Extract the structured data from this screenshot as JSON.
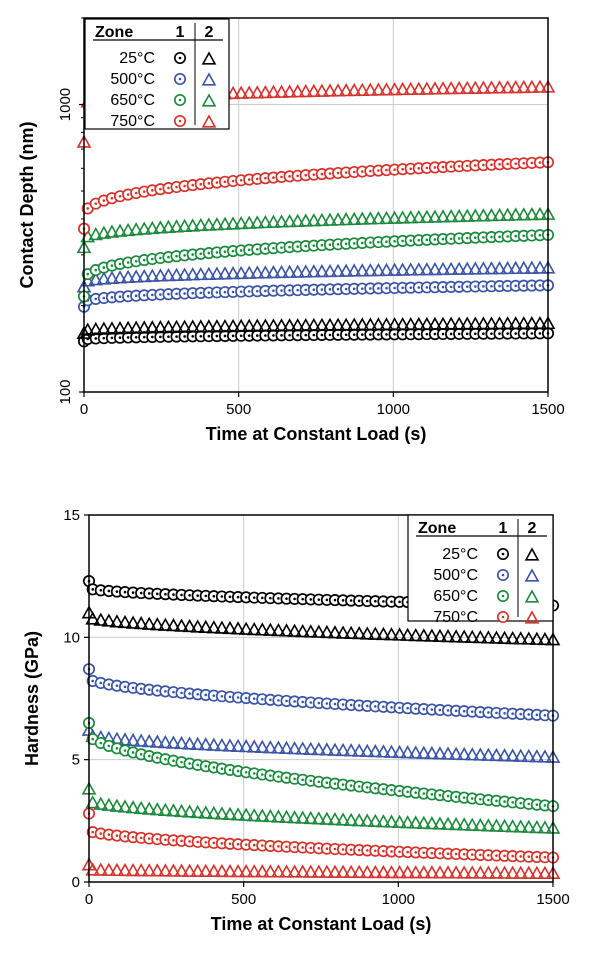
{
  "legend": {
    "header_label": "Zone",
    "zone1": "1",
    "zone2": "2",
    "temperatures": [
      "25°C",
      "500°C",
      "650°C",
      "750°C"
    ]
  },
  "colors": {
    "25°C": "#000000",
    "500°C": "#3a55a5",
    "650°C": "#1c8a3c",
    "750°C": "#d6322c",
    "grid": "#cccccc"
  },
  "chart_data": [
    {
      "type": "scatter",
      "xlabel": "Time at Constant Load (s)",
      "ylabel": "Contact Depth (nm)",
      "xlim": [
        0,
        1500
      ],
      "ylim": [
        100,
        2000
      ],
      "yscale": "log",
      "xticks": [
        0,
        500,
        1000,
        1500
      ],
      "yticks": [
        100,
        1000
      ],
      "xtick_labels": [
        "0",
        "500",
        "1000",
        "1500"
      ],
      "ytick_labels": [
        "100",
        "1000"
      ],
      "grid": true,
      "legend_position": "top-left",
      "series": [
        {
          "temperature": "25°C",
          "zone": "1",
          "marker": "circle",
          "start": 152,
          "end": 160,
          "first": 150
        },
        {
          "temperature": "25°C",
          "zone": "2",
          "marker": "triangle",
          "start": 163,
          "end": 173,
          "first": 160
        },
        {
          "temperature": "500°C",
          "zone": "1",
          "marker": "circle",
          "start": 205,
          "end": 235,
          "first": 198
        },
        {
          "temperature": "500°C",
          "zone": "2",
          "marker": "triangle",
          "start": 240,
          "end": 270,
          "first": 232
        },
        {
          "temperature": "650°C",
          "zone": "1",
          "marker": "circle",
          "start": 245,
          "end": 352,
          "first": 215
        },
        {
          "temperature": "650°C",
          "zone": "2",
          "marker": "triangle",
          "start": 338,
          "end": 415,
          "first": 318
        },
        {
          "temperature": "750°C",
          "zone": "1",
          "marker": "circle",
          "start": 410,
          "end": 630,
          "first": 370
        },
        {
          "temperature": "750°C",
          "zone": "2",
          "marker": "triangle",
          "start": 1005,
          "end": 1150,
          "first": 740
        }
      ]
    },
    {
      "type": "scatter",
      "xlabel": "Time at Constant Load (s)",
      "ylabel": "Hardness (GPa)",
      "xlim": [
        0,
        1500
      ],
      "ylim": [
        0,
        15
      ],
      "yscale": "linear",
      "xticks": [
        0,
        500,
        1000,
        1500
      ],
      "yticks": [
        0,
        5,
        10,
        15
      ],
      "xtick_labels": [
        "0",
        "500",
        "1000",
        "1500"
      ],
      "ytick_labels": [
        "0",
        "5",
        "10",
        "15"
      ],
      "grid": true,
      "legend_position": "top-right",
      "series": [
        {
          "temperature": "25°C",
          "zone": "1",
          "marker": "circle",
          "start": 12.0,
          "end": 11.3,
          "first": 12.3
        },
        {
          "temperature": "25°C",
          "zone": "2",
          "marker": "triangle",
          "start": 10.8,
          "end": 9.9,
          "first": 11.0
        },
        {
          "temperature": "500°C",
          "zone": "1",
          "marker": "circle",
          "start": 8.3,
          "end": 6.8,
          "first": 8.7
        },
        {
          "temperature": "500°C",
          "zone": "2",
          "marker": "triangle",
          "start": 6.0,
          "end": 5.1,
          "first": 6.2
        },
        {
          "temperature": "650°C",
          "zone": "1",
          "marker": "circle",
          "start": 6.0,
          "end": 3.1,
          "first": 6.5
        },
        {
          "temperature": "650°C",
          "zone": "2",
          "marker": "triangle",
          "start": 3.3,
          "end": 2.2,
          "first": 3.8
        },
        {
          "temperature": "750°C",
          "zone": "1",
          "marker": "circle",
          "start": 2.1,
          "end": 1.0,
          "first": 2.8
        },
        {
          "temperature": "750°C",
          "zone": "2",
          "marker": "triangle",
          "start": 0.5,
          "end": 0.35,
          "first": 0.7
        }
      ]
    }
  ]
}
